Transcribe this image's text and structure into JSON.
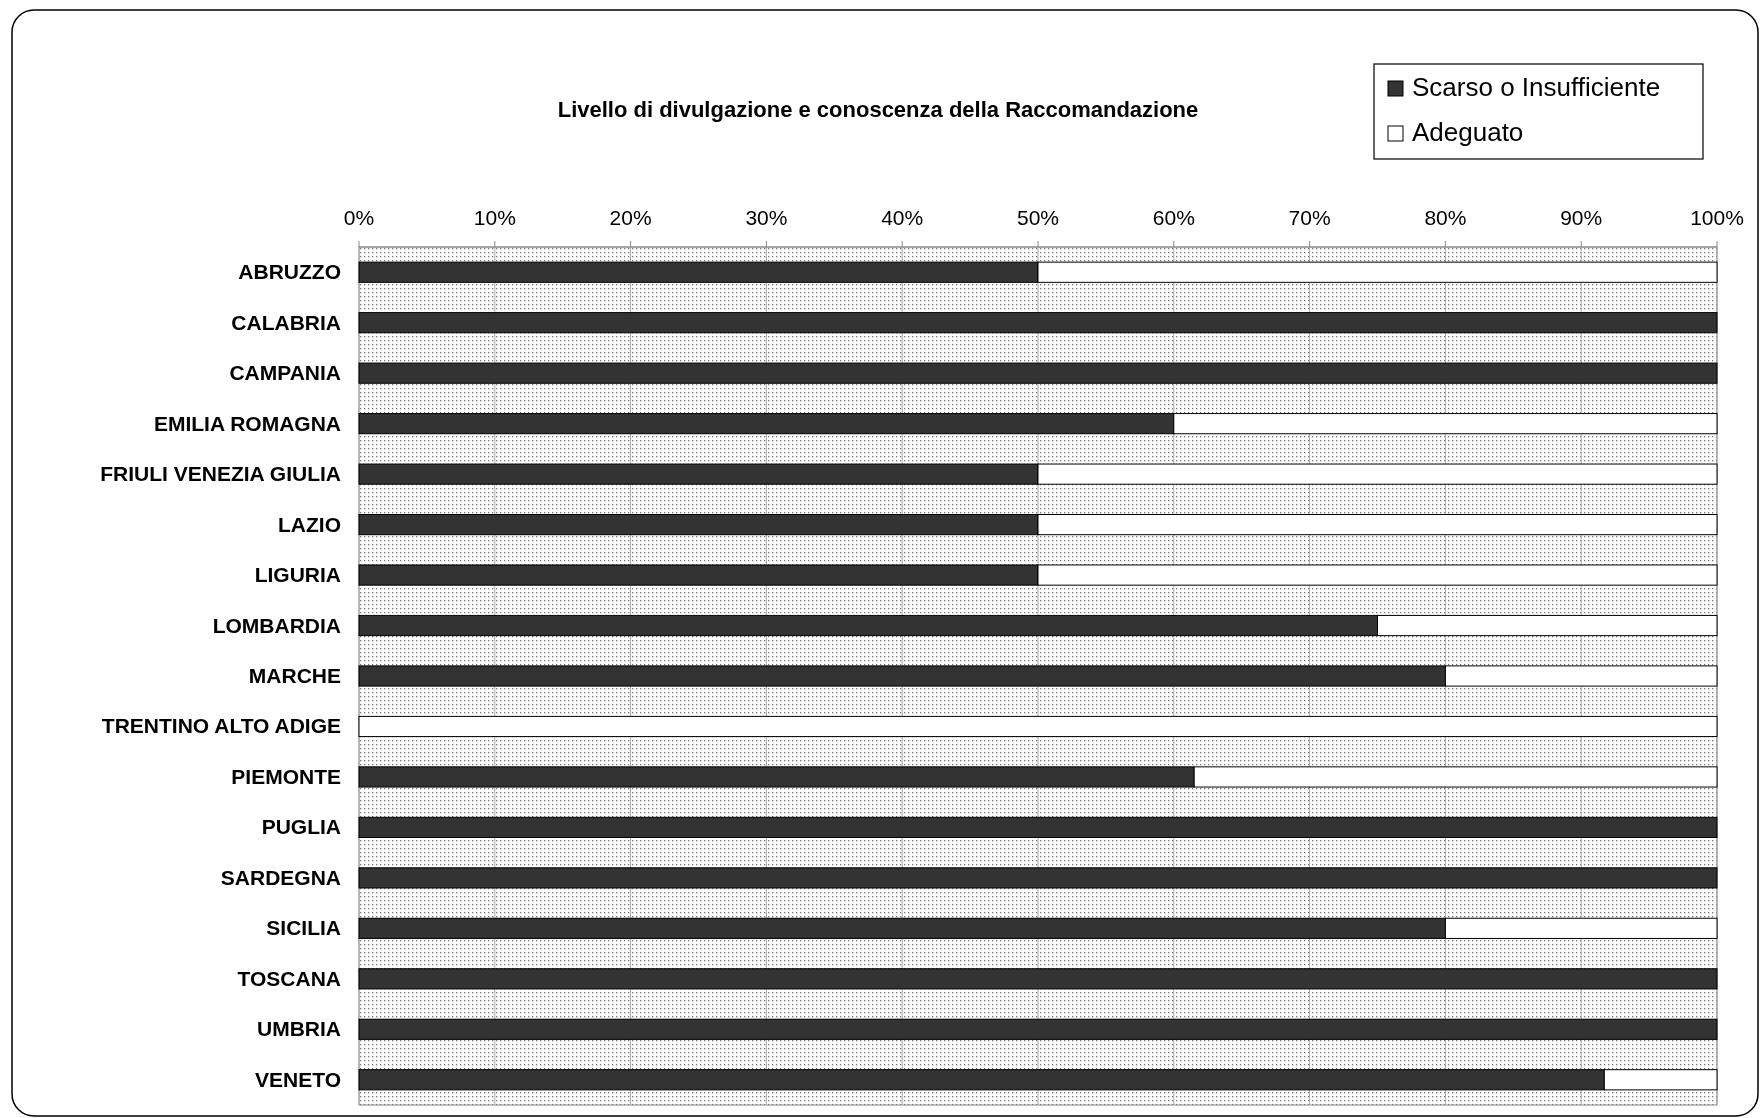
{
  "chart_data": {
    "type": "bar",
    "orientation": "horizontal",
    "stacked": true,
    "title": "Livello di divulgazione e conoscenza della Raccomandazione",
    "categories": [
      "ABRUZZO",
      "CALABRIA",
      "CAMPANIA",
      "EMILIA ROMAGNA",
      "FRIULI VENEZIA GIULIA",
      "LAZIO",
      "LIGURIA",
      "LOMBARDIA",
      "MARCHE",
      "TRENTINO ALTO ADIGE",
      "PIEMONTE",
      "PUGLIA",
      "SARDEGNA",
      "SICILIA",
      "TOSCANA",
      "UMBRIA",
      "VENETO"
    ],
    "series": [
      {
        "name": "Scarso o Insufficiente",
        "color": "#333333",
        "values": [
          50,
          100,
          100,
          60,
          50,
          50,
          50,
          75,
          80,
          0,
          61.5,
          100,
          100,
          80,
          100,
          100,
          91.7
        ]
      },
      {
        "name": "Adeguato",
        "color": "#ffffff",
        "values": [
          50,
          0,
          0,
          40,
          50,
          50,
          50,
          25,
          20,
          100,
          38.5,
          0,
          0,
          20,
          0,
          0,
          8.3
        ]
      }
    ],
    "xlim": [
      0,
      100
    ],
    "xticks": [
      {
        "value": 0,
        "label": "0%"
      },
      {
        "value": 10,
        "label": "10%"
      },
      {
        "value": 20,
        "label": "20%"
      },
      {
        "value": 30,
        "label": "30%"
      },
      {
        "value": 40,
        "label": "40%"
      },
      {
        "value": 50,
        "label": "50%"
      },
      {
        "value": 60,
        "label": "60%"
      },
      {
        "value": 70,
        "label": "70%"
      },
      {
        "value": 80,
        "label": "80%"
      },
      {
        "value": 90,
        "label": "90%"
      },
      {
        "value": 100,
        "label": "100%"
      }
    ],
    "grid": "x",
    "legend": "top right"
  }
}
